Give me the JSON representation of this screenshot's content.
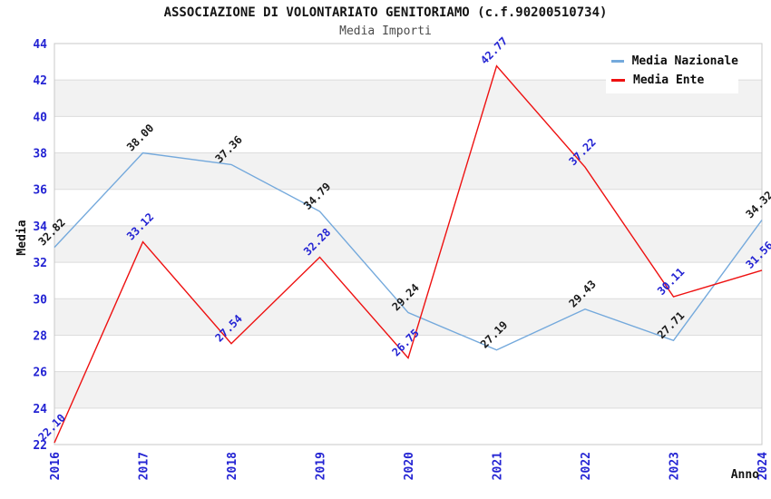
{
  "chart_data": {
    "type": "line",
    "title": "ASSOCIAZIONE DI VOLONTARIATO GENITORIAMO (c.f.90200510734)",
    "subtitle": "Media Importi",
    "xlabel": "Anno",
    "ylabel": "Media",
    "categories": [
      "2016",
      "2017",
      "2018",
      "2019",
      "2020",
      "2021",
      "2022",
      "2023",
      "2024"
    ],
    "ylim": [
      22,
      44
    ],
    "ytick_step": 2,
    "grid": "horizontal-alternating-bands",
    "legend_position": "top-right",
    "series": [
      {
        "name": "Media Nazionale",
        "color": "#74a9dc",
        "label_color": "#1a1a1a",
        "values": [
          32.82,
          38.0,
          37.36,
          34.79,
          29.24,
          27.19,
          29.43,
          27.71,
          34.32
        ],
        "labels": [
          "32.82",
          "38.00",
          "37.36",
          "34.79",
          "29.24",
          "27.19",
          "29.43",
          "27.71",
          "34.32"
        ]
      },
      {
        "name": "Media Ente",
        "color": "#ee1111",
        "label_color": "#2323d3",
        "values": [
          22.1,
          33.12,
          27.54,
          32.28,
          26.75,
          42.77,
          37.22,
          30.11,
          31.56
        ],
        "labels": [
          "22.10",
          "33.12",
          "27.54",
          "32.28",
          "26.75",
          "42.77",
          "37.22",
          "30.11",
          "31.56"
        ]
      }
    ],
    "colors": {
      "tick_label": "#2323d3",
      "band": "#f2f2f2",
      "gridline": "#dcdcdc",
      "plot_border": "#c8c8c8",
      "axis_title": "#141414"
    }
  }
}
